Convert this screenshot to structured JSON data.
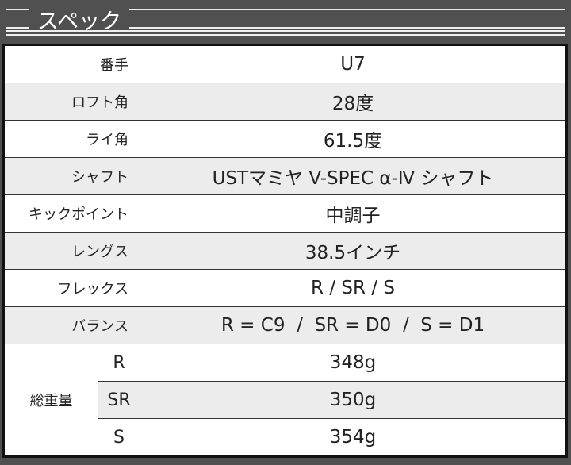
{
  "title": "スペック",
  "rows": [
    {
      "label": "番手",
      "value": "U7"
    },
    {
      "label": "ロフト角",
      "value": "28度"
    },
    {
      "label": "ライ角",
      "value": "61.5度"
    },
    {
      "label": "シャフト",
      "value": "USTマミヤ V-SPEC α-Ⅳ シャフト"
    },
    {
      "label": "キックポイント",
      "value": "中調子"
    },
    {
      "label": "レングス",
      "value": "38.5インチ"
    },
    {
      "label": "フレックス",
      "value": "R / SR / S"
    },
    {
      "label": "バランス",
      "value": "R = C9  /  SR = D0  /  S = D1"
    }
  ],
  "weight": {
    "label": "総重量",
    "items": [
      {
        "flex": "R",
        "value": "348g"
      },
      {
        "flex": "SR",
        "value": "350g"
      },
      {
        "flex": "S",
        "value": "354g"
      }
    ]
  }
}
